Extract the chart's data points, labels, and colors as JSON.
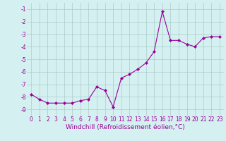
{
  "x": [
    0,
    1,
    2,
    3,
    4,
    5,
    6,
    7,
    8,
    9,
    10,
    11,
    12,
    13,
    14,
    15,
    16,
    17,
    18,
    19,
    20,
    21,
    22,
    23
  ],
  "y": [
    -7.8,
    -8.2,
    -8.5,
    -8.5,
    -8.5,
    -8.5,
    -8.3,
    -8.2,
    -7.2,
    -7.5,
    -8.8,
    -6.5,
    -6.2,
    -5.8,
    -5.3,
    -4.4,
    -1.2,
    -3.5,
    -3.5,
    -3.8,
    -4.0,
    -3.3,
    -3.2,
    -3.2
  ],
  "line_color": "#990099",
  "marker": "D",
  "marker_size": 2.0,
  "bg_color": "#d5f0f0",
  "grid_color": "#aacccc",
  "xlabel": "Windchill (Refroidissement éolien,°C)",
  "xlabel_color": "#990099",
  "ylim": [
    -9.5,
    -0.5
  ],
  "xlim": [
    -0.5,
    23.5
  ],
  "yticks": [
    -9,
    -8,
    -7,
    -6,
    -5,
    -4,
    -3,
    -2,
    -1
  ],
  "xticks": [
    0,
    1,
    2,
    3,
    4,
    5,
    6,
    7,
    8,
    9,
    10,
    11,
    12,
    13,
    14,
    15,
    16,
    17,
    18,
    19,
    20,
    21,
    22,
    23
  ],
  "tick_color": "#990099",
  "tick_fontsize": 5.5,
  "xlabel_fontsize": 6.5,
  "line_width": 0.8
}
